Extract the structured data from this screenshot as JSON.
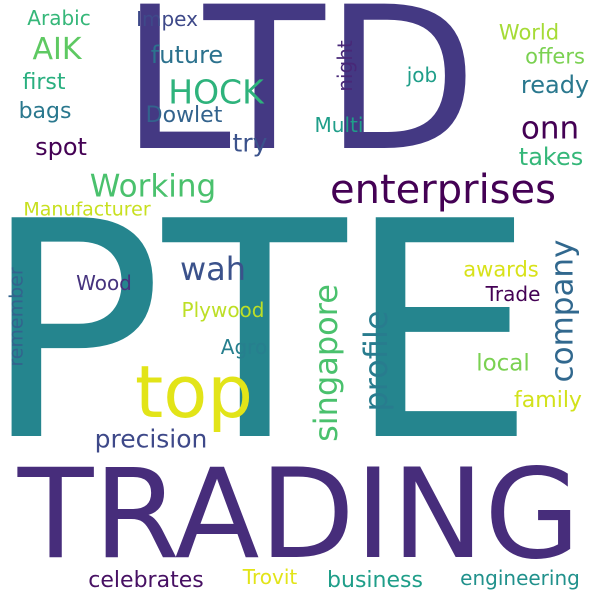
{
  "cloud": {
    "words": [
      {
        "text": "PTE",
        "color": "#25858e"
      },
      {
        "text": "LTD",
        "color": "#443983"
      },
      {
        "text": "TRADING",
        "color": "#472d7b"
      },
      {
        "text": "top",
        "color": "#e2e418"
      },
      {
        "text": "enterprises",
        "color": "#440154"
      },
      {
        "text": "Working",
        "color": "#4ac16d"
      },
      {
        "text": "HOCK",
        "color": "#2eb37c"
      },
      {
        "text": "AIK",
        "color": "#5ec962"
      },
      {
        "text": "singapore",
        "color": "#4ac16d"
      },
      {
        "text": "profile",
        "color": "#287c8e"
      },
      {
        "text": "company",
        "color": "#31688e"
      },
      {
        "text": "wah",
        "color": "#3b528b"
      },
      {
        "text": "precision",
        "color": "#3e4989"
      },
      {
        "text": "onn",
        "color": "#440154"
      },
      {
        "text": "future",
        "color": "#2c728e"
      },
      {
        "text": "celebrates",
        "color": "#471063"
      },
      {
        "text": "business",
        "color": "#1f9e89"
      },
      {
        "text": "engineering",
        "color": "#21918c"
      },
      {
        "text": "ready",
        "color": "#2a788e"
      },
      {
        "text": "takes",
        "color": "#35b779"
      },
      {
        "text": "offers",
        "color": "#7ad151"
      },
      {
        "text": "World",
        "color": "#a5db36"
      },
      {
        "text": "first",
        "color": "#29af7f"
      },
      {
        "text": "bags",
        "color": "#2a788e"
      },
      {
        "text": "Dowlet",
        "color": "#33638d"
      },
      {
        "text": "try",
        "color": "#3b528b"
      },
      {
        "text": "spot",
        "color": "#440154"
      },
      {
        "text": "Impex",
        "color": "#3e4989"
      },
      {
        "text": "Arabic",
        "color": "#35b779"
      },
      {
        "text": "night",
        "color": "#482878"
      },
      {
        "text": "job",
        "color": "#1f9e89"
      },
      {
        "text": "Multi",
        "color": "#1f9e89"
      },
      {
        "text": "Manufacturer",
        "color": "#c8e020"
      },
      {
        "text": "Wood",
        "color": "#46337e"
      },
      {
        "text": "Plywood",
        "color": "#bddf26"
      },
      {
        "text": "Agro",
        "color": "#277f8e"
      },
      {
        "text": "awards",
        "color": "#d8e219"
      },
      {
        "text": "Trade",
        "color": "#440154"
      },
      {
        "text": "local",
        "color": "#7ad151"
      },
      {
        "text": "family",
        "color": "#d2e21b"
      },
      {
        "text": "remember",
        "color": "#33638d"
      },
      {
        "text": "Trovit",
        "color": "#e2e418"
      }
    ]
  }
}
